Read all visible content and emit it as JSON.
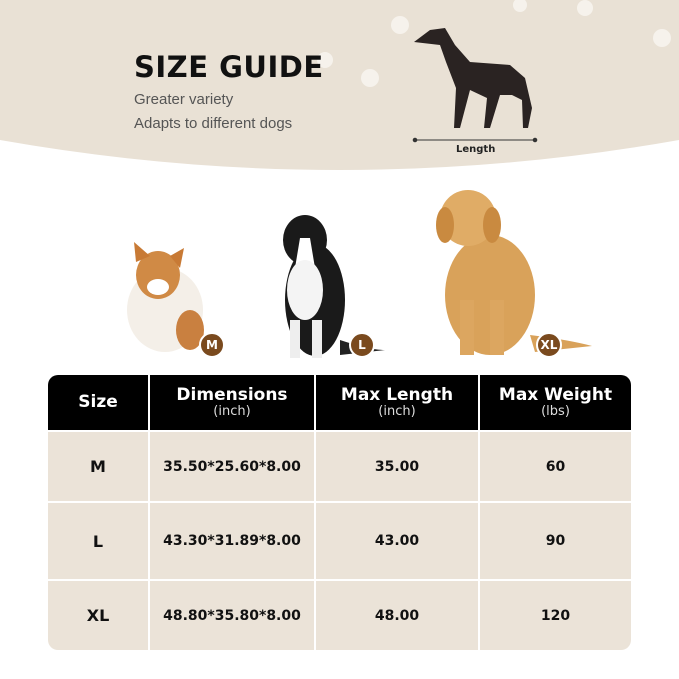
{
  "header": {
    "title": "SIZE GUIDE",
    "subtitle_lines": [
      "Greater variety",
      "Adapts to different dogs"
    ],
    "length_label": "Length"
  },
  "dogs": [
    {
      "breed_icon": "corgi",
      "badge": "M"
    },
    {
      "breed_icon": "border-collie",
      "badge": "L"
    },
    {
      "breed_icon": "golden-retriever",
      "badge": "XL"
    }
  ],
  "colors": {
    "background_beige": "#e9e1d5",
    "table_header": "#000000",
    "table_row": "#ebe3d8",
    "badge": "#7a4a1e"
  },
  "table": {
    "headers": [
      {
        "label": "Size",
        "unit": ""
      },
      {
        "label": "Dimensions",
        "unit": "(inch)"
      },
      {
        "label": "Max Length",
        "unit": "(inch)"
      },
      {
        "label": "Max Weight",
        "unit": "(lbs)"
      }
    ],
    "rows": [
      [
        "M",
        "35.50*25.60*8.00",
        "35.00",
        "60"
      ],
      [
        "L",
        "43.30*31.89*8.00",
        "43.00",
        "90"
      ],
      [
        "XL",
        "48.80*35.80*8.00",
        "48.00",
        "120"
      ]
    ]
  }
}
